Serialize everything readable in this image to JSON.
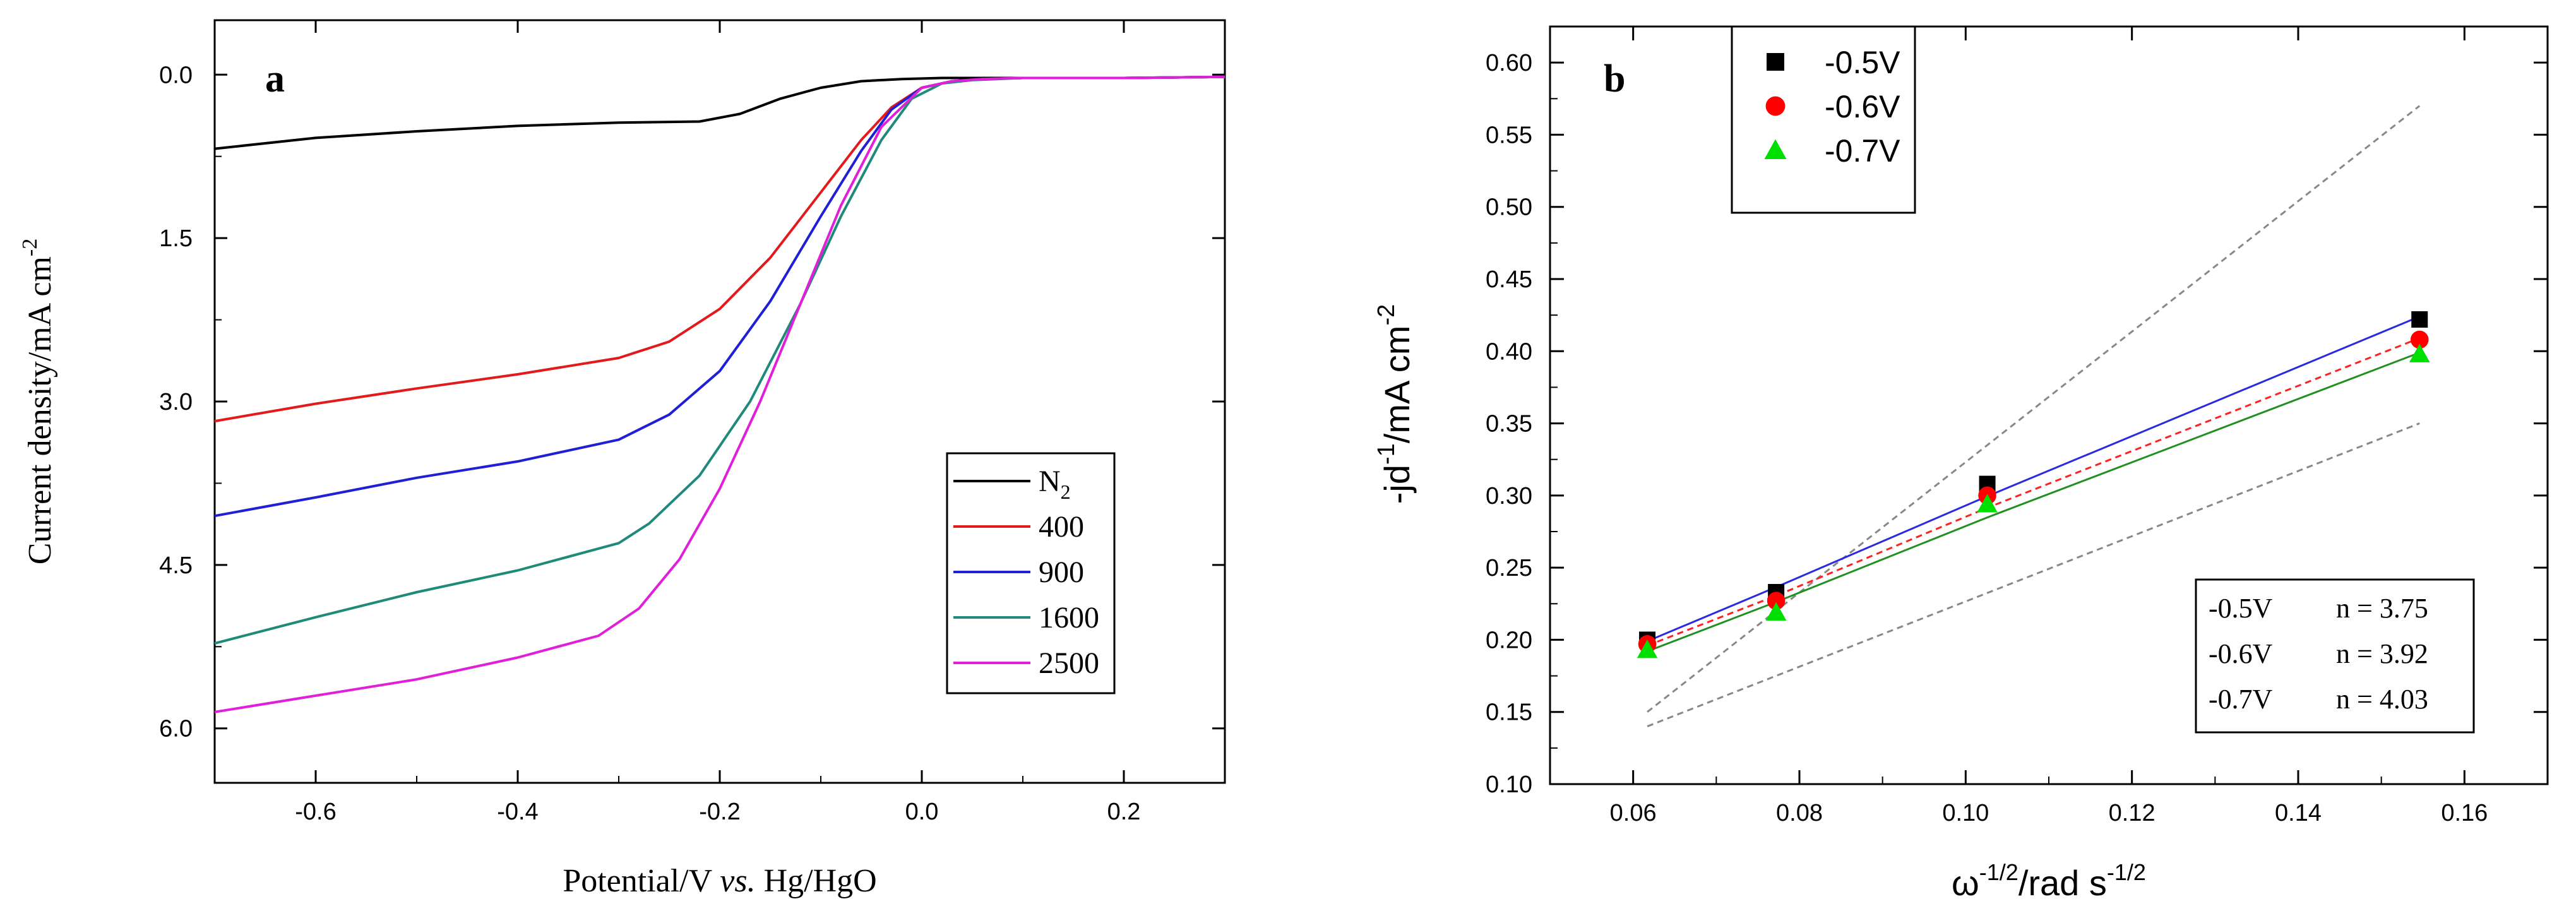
{
  "chart_data": [
    {
      "type": "line",
      "panel_label": "a",
      "xlabel": {
        "pre": "Potential/V ",
        "italic": "vs.",
        "post": " Hg/HgO"
      },
      "ylabel": {
        "main": "Current density/mA cm",
        "sup": "-2"
      },
      "xlim": [
        -0.7,
        0.3
      ],
      "ylim": [
        6.5,
        -0.5
      ],
      "y_inverted": true,
      "x_ticks": [
        "-0.6",
        "-0.4",
        "-0.2",
        "0.0",
        "0.2"
      ],
      "x_tick_values": [
        -0.6,
        -0.4,
        -0.2,
        0.0,
        0.2
      ],
      "y_ticks": [
        "0.0",
        "1.5",
        "3.0",
        "4.5",
        "6.0"
      ],
      "y_tick_values": [
        0.0,
        1.5,
        3.0,
        4.5,
        6.0
      ],
      "legend_position": "right",
      "series": [
        {
          "name": "N",
          "name_sub": "2",
          "color": "#000000",
          "x": [
            -0.7,
            -0.6,
            -0.5,
            -0.4,
            -0.3,
            -0.22,
            -0.18,
            -0.14,
            -0.1,
            -0.06,
            -0.02,
            0.02,
            0.1,
            0.2,
            0.3
          ],
          "y": [
            0.68,
            0.58,
            0.52,
            0.47,
            0.44,
            0.43,
            0.36,
            0.22,
            0.12,
            0.06,
            0.04,
            0.03,
            0.03,
            0.03,
            0.02
          ]
        },
        {
          "name": "400",
          "color": "#e31a1c",
          "x": [
            -0.7,
            -0.6,
            -0.5,
            -0.4,
            -0.3,
            -0.25,
            -0.2,
            -0.15,
            -0.1,
            -0.06,
            -0.03,
            0.0,
            0.03,
            0.06,
            0.1,
            0.2,
            0.3
          ],
          "y": [
            3.18,
            3.02,
            2.88,
            2.75,
            2.6,
            2.45,
            2.15,
            1.68,
            1.08,
            0.6,
            0.3,
            0.12,
            0.06,
            0.04,
            0.03,
            0.03,
            0.02
          ]
        },
        {
          "name": "900",
          "color": "#1f1fd6",
          "x": [
            -0.7,
            -0.6,
            -0.5,
            -0.4,
            -0.3,
            -0.25,
            -0.2,
            -0.15,
            -0.1,
            -0.06,
            -0.03,
            0.0,
            0.03,
            0.06,
            0.1,
            0.2,
            0.3
          ],
          "y": [
            4.05,
            3.88,
            3.7,
            3.55,
            3.35,
            3.12,
            2.72,
            2.08,
            1.3,
            0.7,
            0.32,
            0.12,
            0.06,
            0.04,
            0.03,
            0.03,
            0.02
          ]
        },
        {
          "name": "1600",
          "color": "#1f8a7a",
          "x": [
            -0.7,
            -0.6,
            -0.5,
            -0.4,
            -0.3,
            -0.27,
            -0.22,
            -0.17,
            -0.12,
            -0.08,
            -0.04,
            -0.01,
            0.02,
            0.05,
            0.1,
            0.2,
            0.3
          ],
          "y": [
            5.22,
            4.98,
            4.75,
            4.55,
            4.3,
            4.12,
            3.68,
            3.0,
            2.1,
            1.3,
            0.6,
            0.22,
            0.08,
            0.05,
            0.03,
            0.03,
            0.02
          ]
        },
        {
          "name": "2500",
          "color": "#e020d8",
          "x": [
            -0.7,
            -0.6,
            -0.5,
            -0.4,
            -0.32,
            -0.28,
            -0.24,
            -0.2,
            -0.16,
            -0.12,
            -0.08,
            -0.04,
            0.0,
            0.03,
            0.06,
            0.1,
            0.2,
            0.3
          ],
          "y": [
            5.85,
            5.7,
            5.55,
            5.35,
            5.15,
            4.9,
            4.45,
            3.8,
            3.0,
            2.1,
            1.2,
            0.48,
            0.12,
            0.06,
            0.04,
            0.03,
            0.03,
            0.02
          ]
        }
      ]
    },
    {
      "type": "scatter",
      "panel_label": "b",
      "xlabel": {
        "base1": "ω",
        "sup1": "-1/2",
        "base2": "/rad s",
        "sup2": "-1/2"
      },
      "ylabel": {
        "base1": "-jd",
        "sup1": "-1",
        "base2": "/mA cm",
        "sup2": "-2"
      },
      "xlim": [
        0.05,
        0.17
      ],
      "ylim": [
        0.1,
        0.625
      ],
      "x_ticks": [
        "0.06",
        "0.08",
        "0.10",
        "0.12",
        "0.14",
        "0.16"
      ],
      "x_tick_values": [
        0.06,
        0.08,
        0.1,
        0.12,
        0.14,
        0.16
      ],
      "y_ticks": [
        "0.10",
        "0.15",
        "0.20",
        "0.25",
        "0.30",
        "0.35",
        "0.40",
        "0.45",
        "0.50",
        "0.55",
        "0.60"
      ],
      "y_tick_values": [
        0.1,
        0.15,
        0.2,
        0.25,
        0.3,
        0.35,
        0.4,
        0.45,
        0.5,
        0.55,
        0.6
      ],
      "legend_position": "top-left",
      "x": [
        0.0617,
        0.0772,
        0.1026,
        0.1546
      ],
      "series": [
        {
          "name": "-0.5V",
          "marker": "square",
          "color": "#000000",
          "fit_color": "#2a2ae0",
          "fit_dash": "solid",
          "y": [
            0.2,
            0.233,
            0.308,
            0.422
          ],
          "fit": [
            0.199,
            0.2365,
            0.2995,
            0.424
          ]
        },
        {
          "name": "-0.6V",
          "marker": "circle",
          "color": "#ff0000",
          "fit_color": "#ff2020",
          "fit_dash": "dashed",
          "y": [
            0.197,
            0.227,
            0.3,
            0.408
          ],
          "fit": [
            0.196,
            0.2305,
            0.2915,
            0.409
          ]
        },
        {
          "name": "-0.7V",
          "marker": "triangle",
          "color": "#00e000",
          "fit_color": "#209020",
          "fit_dash": "solid",
          "y": [
            0.193,
            0.219,
            0.294,
            0.398
          ],
          "fit": [
            0.192,
            0.2262,
            0.2848,
            0.399
          ]
        }
      ],
      "reference_lines": [
        {
          "x": [
            0.0617,
            0.1546
          ],
          "y": [
            0.15,
            0.57
          ],
          "color": "#888888"
        },
        {
          "x": [
            0.0617,
            0.1546
          ],
          "y": [
            0.14,
            0.35
          ],
          "color": "#888888"
        }
      ],
      "annotation": [
        {
          "label": "-0.5V",
          "n": "n = 3.75"
        },
        {
          "label": "-0.6V",
          "n": "n = 3.92"
        },
        {
          "label": "-0.7V",
          "n": "n = 4.03"
        }
      ]
    }
  ]
}
